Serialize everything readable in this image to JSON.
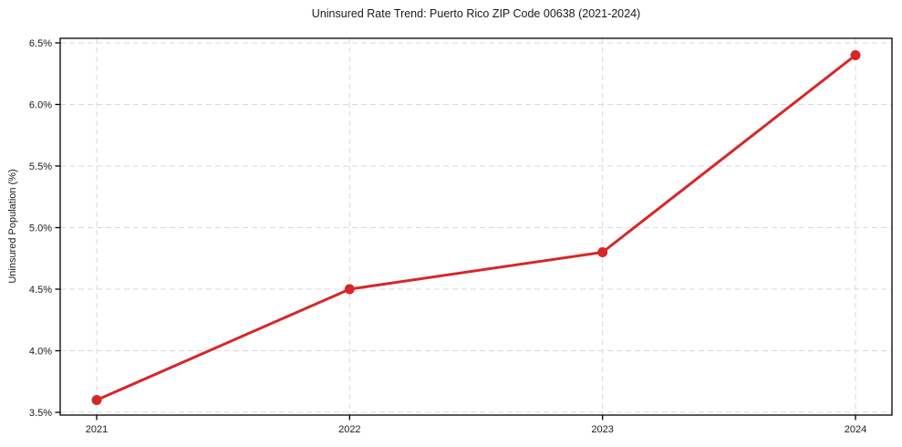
{
  "figure": {
    "title": "Uninsured Rate Trend: Puerto Rico ZIP Code 00638 (2021-2024)",
    "ylabel": "Uninsured Population (%)",
    "xlabel": ""
  },
  "chart_data": {
    "type": "line",
    "title": "Uninsured Rate Trend: Puerto Rico ZIP Code 00638 (2021-2024)",
    "xlabel": "",
    "ylabel": "Uninsured Population (%)",
    "categories": [
      "2021",
      "2022",
      "2023",
      "2024"
    ],
    "values": [
      3.6,
      4.5,
      4.8,
      6.4
    ],
    "unit": "%",
    "yticks": [
      3.5,
      4.0,
      4.5,
      5.0,
      5.5,
      6.0,
      6.5
    ],
    "ytick_labels": [
      "3.5%",
      "4.0%",
      "4.5%",
      "5.0%",
      "5.5%",
      "6.0%",
      "6.5%"
    ],
    "xtick_labels": [
      "2021",
      "2022",
      "2023",
      "2024"
    ],
    "ylim": [
      3.5,
      6.5
    ],
    "grid": true,
    "grid_style": "dashed",
    "legend_position": "none",
    "marker": "circle"
  },
  "colors": {
    "line": "#d62728",
    "marker": "#d62728",
    "grid": "#d9d9d9",
    "spine": "#000000",
    "tick": "#000000",
    "text": "#1a1a1a",
    "background": "#ffffff"
  }
}
